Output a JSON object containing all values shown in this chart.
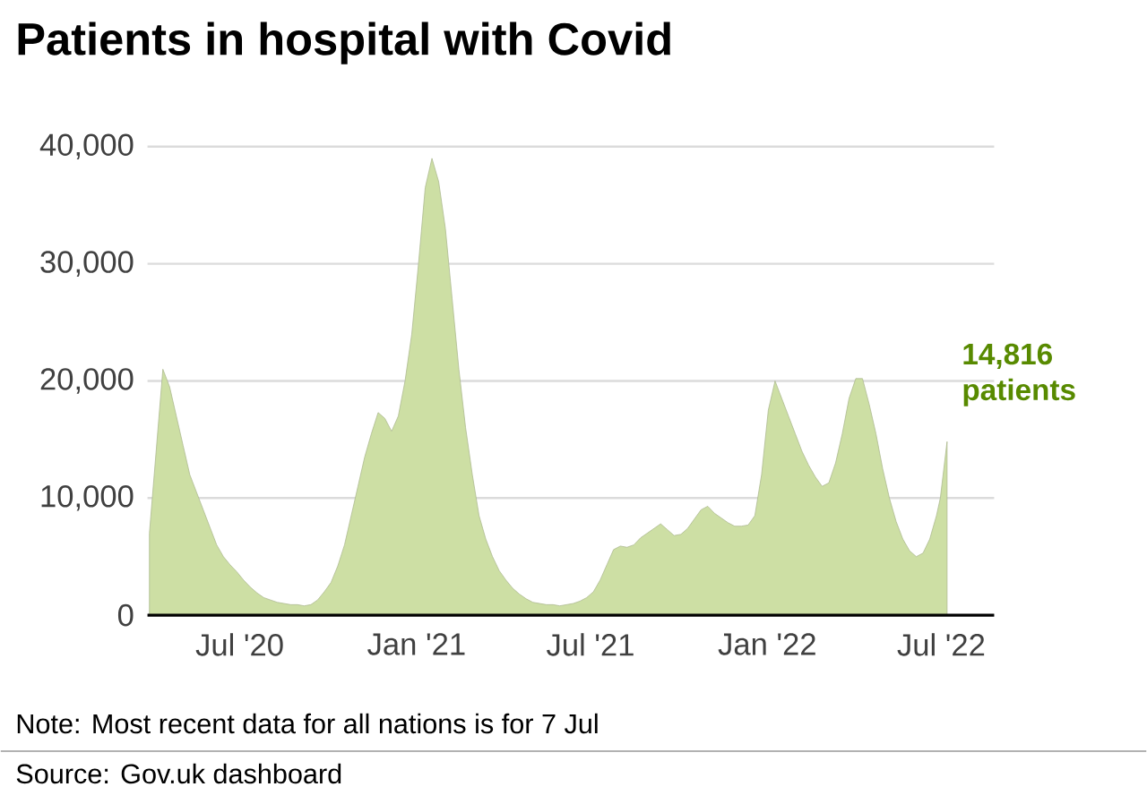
{
  "chart_data": {
    "type": "area",
    "title": "Patients in hospital with Covid",
    "x": [
      "2020-03-29",
      "2020-04-05",
      "2020-04-12",
      "2020-04-19",
      "2020-04-26",
      "2020-05-03",
      "2020-05-10",
      "2020-05-17",
      "2020-05-24",
      "2020-05-31",
      "2020-06-07",
      "2020-06-14",
      "2020-06-21",
      "2020-06-28",
      "2020-07-05",
      "2020-07-12",
      "2020-07-19",
      "2020-07-26",
      "2020-08-02",
      "2020-08-09",
      "2020-08-16",
      "2020-08-23",
      "2020-08-30",
      "2020-09-06",
      "2020-09-13",
      "2020-09-20",
      "2020-09-27",
      "2020-10-04",
      "2020-10-11",
      "2020-10-18",
      "2020-10-25",
      "2020-11-01",
      "2020-11-08",
      "2020-11-15",
      "2020-11-22",
      "2020-11-29",
      "2020-12-06",
      "2020-12-13",
      "2020-12-20",
      "2020-12-27",
      "2021-01-03",
      "2021-01-10",
      "2021-01-17",
      "2021-01-24",
      "2021-01-31",
      "2021-02-07",
      "2021-02-14",
      "2021-02-21",
      "2021-02-28",
      "2021-03-07",
      "2021-03-14",
      "2021-03-21",
      "2021-03-28",
      "2021-04-04",
      "2021-04-11",
      "2021-04-18",
      "2021-04-25",
      "2021-05-02",
      "2021-05-09",
      "2021-05-16",
      "2021-05-23",
      "2021-05-30",
      "2021-06-06",
      "2021-06-13",
      "2021-06-20",
      "2021-06-27",
      "2021-07-04",
      "2021-07-11",
      "2021-07-18",
      "2021-07-25",
      "2021-08-01",
      "2021-08-08",
      "2021-08-15",
      "2021-08-22",
      "2021-08-29",
      "2021-09-05",
      "2021-09-12",
      "2021-09-19",
      "2021-09-26",
      "2021-10-03",
      "2021-10-10",
      "2021-10-17",
      "2021-10-24",
      "2021-10-31",
      "2021-11-07",
      "2021-11-14",
      "2021-11-21",
      "2021-11-28",
      "2021-12-05",
      "2021-12-12",
      "2021-12-19",
      "2021-12-26",
      "2022-01-02",
      "2022-01-09",
      "2022-01-16",
      "2022-01-23",
      "2022-01-30",
      "2022-02-06",
      "2022-02-13",
      "2022-02-20",
      "2022-02-27",
      "2022-03-06",
      "2022-03-13",
      "2022-03-20",
      "2022-03-27",
      "2022-04-03",
      "2022-04-10",
      "2022-04-17",
      "2022-04-24",
      "2022-05-01",
      "2022-05-08",
      "2022-05-15",
      "2022-05-22",
      "2022-05-29",
      "2022-06-05",
      "2022-06-12",
      "2022-06-19",
      "2022-06-26",
      "2022-06-30",
      "2022-07-07"
    ],
    "values": [
      7000,
      14000,
      21000,
      19500,
      17000,
      14500,
      12000,
      10500,
      9000,
      7500,
      6000,
      5000,
      4300,
      3700,
      3000,
      2400,
      1900,
      1500,
      1300,
      1100,
      1000,
      900,
      900,
      800,
      900,
      1300,
      2000,
      2800,
      4200,
      6000,
      8500,
      11000,
      13500,
      15500,
      17300,
      16800,
      15700,
      17000,
      20000,
      24000,
      30000,
      36500,
      39000,
      37000,
      33000,
      27000,
      21000,
      16000,
      12000,
      8500,
      6500,
      5000,
      3800,
      3000,
      2300,
      1800,
      1400,
      1100,
      1000,
      900,
      900,
      800,
      900,
      1000,
      1200,
      1500,
      2000,
      3000,
      4300,
      5600,
      5900,
      5800,
      6000,
      6600,
      7000,
      7400,
      7800,
      7300,
      6800,
      6900,
      7400,
      8200,
      9000,
      9300,
      8700,
      8300,
      7900,
      7600,
      7600,
      7700,
      8500,
      12000,
      17500,
      20000,
      18500,
      17000,
      15500,
      14000,
      12800,
      11800,
      11000,
      11300,
      13000,
      15500,
      18500,
      20200,
      20200,
      18000,
      15500,
      12500,
      10000,
      8000,
      6500,
      5500,
      5000,
      5300,
      6500,
      8500,
      10000,
      14816
    ],
    "color": "#cddfa4",
    "xlim": [
      "2020-03-27",
      "2022-08-25"
    ],
    "xticks": [
      {
        "value": "2020-07-01",
        "label": "Jul '20"
      },
      {
        "value": "2021-01-01",
        "label": "Jan '21"
      },
      {
        "value": "2021-07-01",
        "label": "Jul '21"
      },
      {
        "value": "2022-01-01",
        "label": "Jan '22"
      },
      {
        "value": "2022-07-01",
        "label": "Jul '22"
      }
    ],
    "ylim": [
      0,
      40000
    ],
    "yticks": [
      {
        "value": 0,
        "label": "0"
      },
      {
        "value": 10000,
        "label": "10,000"
      },
      {
        "value": 20000,
        "label": "20,000"
      },
      {
        "value": 30000,
        "label": "30,000"
      },
      {
        "value": 40000,
        "label": "40,000"
      }
    ],
    "grid": "y",
    "annotations": [
      {
        "text": "14,816 patients",
        "x": "2022-07-07",
        "y": 14816
      },
      "Note: Most recent data for all nations is for 7 Jul",
      "Source: Gov.uk dashboard"
    ]
  }
}
